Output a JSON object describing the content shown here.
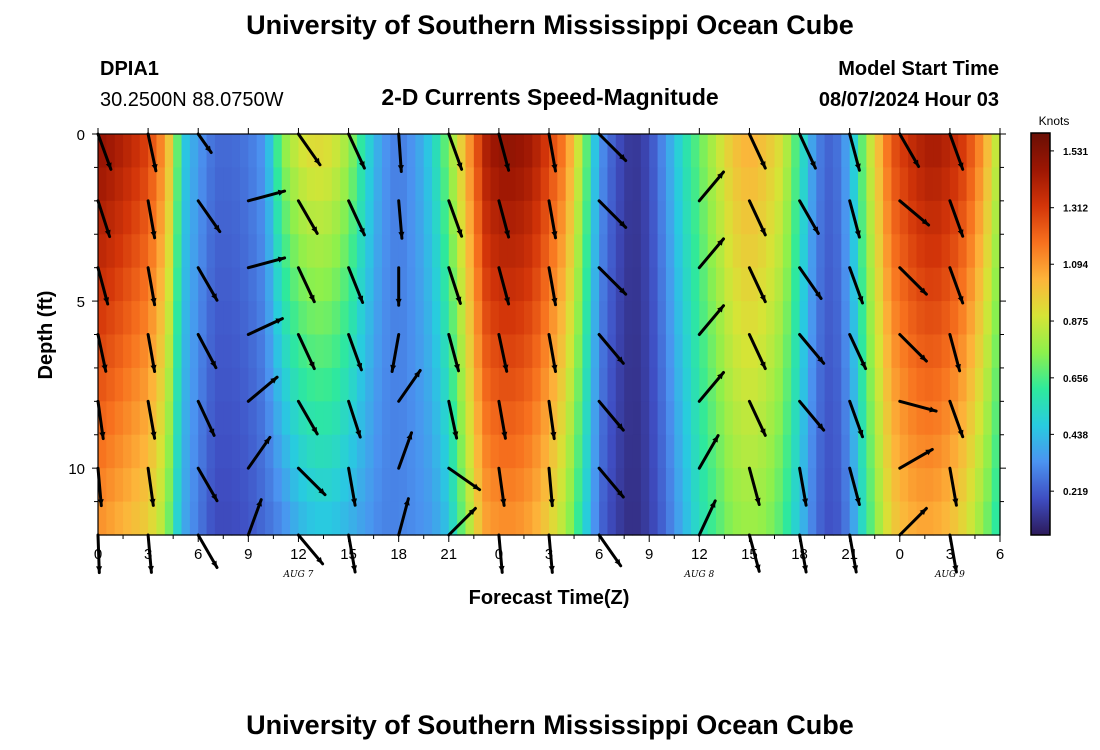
{
  "header": {
    "title": "University of Southern Mississippi Ocean Cube",
    "station": "DPIA1",
    "location": "30.2500N  88.0750W",
    "subtitle": "2-D Currents Speed-Magnitude",
    "model_label": "Model Start Time",
    "model_time": "08/07/2024 Hour 03"
  },
  "footer": {
    "title": "University of Southern Mississippi Ocean Cube"
  },
  "colors": {
    "scale": [
      "#2c1a5a",
      "#3f4ec3",
      "#4b93f0",
      "#28cbe0",
      "#2ee99c",
      "#8df04c",
      "#d6e436",
      "#fdb43a",
      "#f7711e",
      "#d33509",
      "#9c1603",
      "#690f05"
    ],
    "arrow": "#000000"
  },
  "chart_data": {
    "type": "heatmap",
    "title": "2-D Currents Speed-Magnitude",
    "xlabel": "Forecast Time(Z)",
    "ylabel": "Depth (ft)",
    "colorbar_label": "Knots",
    "colorbar_ticks": [
      "1.531",
      "1.312",
      "1.094",
      "0.875",
      "0.656",
      "0.438",
      "0.219"
    ],
    "colorbar_range": [
      0.05,
      1.6
    ],
    "x_ticks": [
      "0",
      "3",
      "6",
      "9",
      "12",
      "15",
      "18",
      "21",
      "0",
      "3",
      "6",
      "9",
      "12",
      "15",
      "18",
      "21",
      "0",
      "3",
      "6"
    ],
    "x_range_hours": [
      0,
      54
    ],
    "y_ticks": [
      "0",
      "5",
      "10"
    ],
    "y_range_ft": [
      0,
      12
    ],
    "dates": [
      {
        "label": "AUG 7",
        "hour": 12
      },
      {
        "label": "AUG 8",
        "hour": 36
      },
      {
        "label": "AUG 9",
        "hour": 51
      }
    ],
    "speed_profile": {
      "hours": [
        0,
        1,
        2,
        3,
        4,
        4.5,
        5,
        6,
        7,
        8,
        9,
        10,
        11,
        12,
        13,
        14,
        15,
        16,
        17,
        18,
        19,
        20,
        21,
        22,
        22.7,
        23,
        24,
        25,
        26,
        27,
        28,
        29,
        30,
        31,
        32,
        33,
        34,
        35,
        36,
        37,
        38,
        39,
        40,
        41,
        42,
        43,
        44,
        45,
        46,
        47,
        47.5,
        48,
        49,
        50,
        51,
        52,
        53,
        54
      ],
      "surface": [
        1.5,
        1.45,
        1.38,
        1.3,
        1.1,
        0.9,
        0.5,
        0.35,
        0.25,
        0.25,
        0.28,
        0.35,
        0.75,
        0.9,
        0.95,
        0.92,
        0.8,
        0.55,
        0.35,
        0.28,
        0.35,
        0.5,
        0.75,
        1.05,
        1.25,
        1.4,
        1.5,
        1.5,
        1.45,
        1.3,
        1.15,
        0.8,
        0.35,
        0.2,
        0.12,
        0.18,
        0.35,
        0.55,
        0.7,
        0.85,
        1.0,
        1.05,
        1.0,
        0.9,
        0.6,
        0.3,
        0.22,
        0.4,
        0.8,
        1.1,
        1.25,
        1.3,
        1.4,
        1.45,
        1.4,
        1.3,
        1.1,
        0.8
      ],
      "bottom": [
        1.1,
        1.05,
        1.0,
        0.95,
        0.8,
        0.6,
        0.4,
        0.28,
        0.18,
        0.18,
        0.2,
        0.25,
        0.3,
        0.4,
        0.45,
        0.45,
        0.4,
        0.35,
        0.3,
        0.3,
        0.32,
        0.35,
        0.45,
        0.75,
        0.95,
        1.05,
        1.1,
        1.1,
        1.05,
        0.95,
        0.8,
        0.55,
        0.25,
        0.15,
        0.1,
        0.15,
        0.25,
        0.4,
        0.55,
        0.65,
        0.75,
        0.78,
        0.75,
        0.65,
        0.45,
        0.25,
        0.18,
        0.3,
        0.6,
        0.85,
        0.95,
        1.0,
        1.05,
        1.05,
        1.0,
        0.9,
        0.75,
        0.55
      ]
    },
    "vectors": {
      "hours": [
        0,
        3,
        6,
        9,
        12,
        15,
        18,
        21,
        24,
        27,
        30,
        33,
        36,
        39,
        42,
        45,
        48,
        51
      ],
      "depths_ft": [
        0,
        2,
        4,
        6,
        8,
        10,
        12
      ],
      "angle_deg_clockwise_from_east": [
        [
          70,
          78,
          55,
          0,
          55,
          65,
          86,
          70,
          75,
          80,
          45,
          0,
          -50,
          65,
          65,
          75,
          60,
          70
        ],
        [
          72,
          80,
          55,
          -15,
          60,
          65,
          85,
          70,
          75,
          80,
          45,
          0,
          -50,
          65,
          60,
          75,
          40,
          70
        ],
        [
          75,
          80,
          60,
          -15,
          65,
          68,
          90,
          72,
          75,
          80,
          45,
          0,
          -50,
          65,
          55,
          70,
          45,
          70
        ],
        [
          78,
          80,
          62,
          -25,
          65,
          70,
          100,
          75,
          78,
          80,
          50,
          0,
          -50,
          65,
          50,
          65,
          45,
          75
        ],
        [
          82,
          80,
          65,
          -40,
          60,
          72,
          -55,
          78,
          80,
          82,
          50,
          0,
          -50,
          65,
          50,
          70,
          15,
          70
        ],
        [
          85,
          82,
          60,
          -55,
          45,
          80,
          -70,
          35,
          82,
          85,
          50,
          0,
          -60,
          75,
          80,
          75,
          -30,
          80
        ],
        [
          88,
          85,
          60,
          -70,
          50,
          80,
          -75,
          -45,
          85,
          85,
          55,
          0,
          -65,
          75,
          80,
          80,
          -45,
          80
        ]
      ],
      "length_frac": [
        [
          0.75,
          0.75,
          0.45,
          0.0,
          0.75,
          0.75,
          0.75,
          0.75,
          0.75,
          0.75,
          0.75,
          0.0,
          0.0,
          0.75,
          0.75,
          0.75,
          0.75,
          0.75
        ],
        [
          0.75,
          0.75,
          0.75,
          0.75,
          0.75,
          0.75,
          0.75,
          0.75,
          0.75,
          0.75,
          0.75,
          0.0,
          0.75,
          0.75,
          0.75,
          0.75,
          0.75,
          0.75
        ],
        [
          0.75,
          0.75,
          0.75,
          0.75,
          0.75,
          0.75,
          0.75,
          0.75,
          0.75,
          0.75,
          0.75,
          0.0,
          0.75,
          0.75,
          0.75,
          0.75,
          0.75,
          0.75
        ],
        [
          0.75,
          0.75,
          0.75,
          0.75,
          0.75,
          0.75,
          0.75,
          0.75,
          0.75,
          0.75,
          0.75,
          0.0,
          0.75,
          0.75,
          0.75,
          0.75,
          0.75,
          0.75
        ],
        [
          0.75,
          0.75,
          0.75,
          0.75,
          0.75,
          0.75,
          0.75,
          0.75,
          0.75,
          0.75,
          0.75,
          0.0,
          0.75,
          0.75,
          0.75,
          0.75,
          0.75,
          0.75
        ],
        [
          0.75,
          0.75,
          0.75,
          0.75,
          0.75,
          0.75,
          0.75,
          0.75,
          0.75,
          0.75,
          0.75,
          0.0,
          0.75,
          0.75,
          0.75,
          0.75,
          0.75,
          0.75
        ],
        [
          0.75,
          0.75,
          0.75,
          0.75,
          0.75,
          0.75,
          0.75,
          0.75,
          0.75,
          0.75,
          0.75,
          0.0,
          0.75,
          0.75,
          0.75,
          0.75,
          0.75,
          0.75
        ]
      ]
    }
  }
}
